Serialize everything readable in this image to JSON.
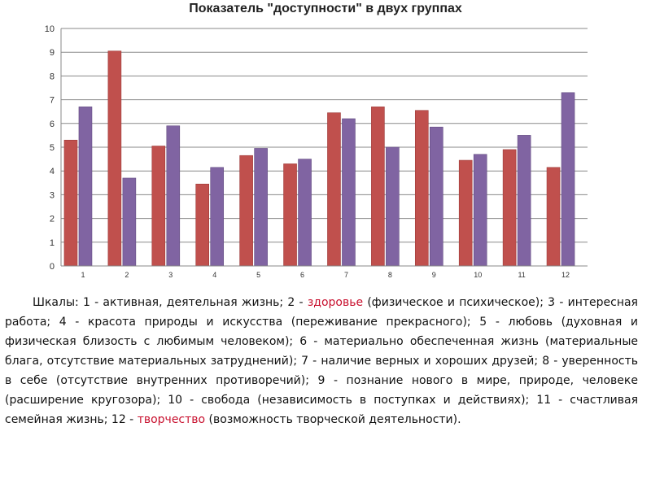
{
  "chart_data": {
    "type": "bar",
    "title": "Показатель \"доступности\" в двух группах",
    "categories": [
      "1",
      "2",
      "3",
      "4",
      "5",
      "6",
      "7",
      "8",
      "9",
      "10",
      "11",
      "12"
    ],
    "series": [
      {
        "values": [
          5.3,
          9.05,
          5.05,
          3.45,
          4.65,
          4.3,
          6.45,
          6.7,
          6.55,
          4.45,
          4.9,
          4.15
        ]
      },
      {
        "values": [
          6.7,
          3.7,
          5.9,
          4.15,
          4.95,
          4.5,
          6.2,
          5.0,
          5.85,
          4.7,
          5.5,
          7.3
        ]
      }
    ],
    "yticks": [
      "0",
      "1",
      "2",
      "3",
      "4",
      "5",
      "6",
      "7",
      "8",
      "9",
      "10"
    ],
    "ylim": [
      0,
      10
    ],
    "grid": true,
    "colors": [
      "#c0504d",
      "#8064a2"
    ]
  },
  "legend": {
    "p1": "Шкалы: 1 - активная, деятельная жизнь; 2 - ",
    "h1": "здоровье",
    "p2": " (физическое и психическое); 3 - интересная работа; 4 - красота природы и искусства (переживание прекрасного); 5 - любовь (духовная и физическая близость с любимым человеком); 6 - материально обеспеченная жизнь (материальные блага, отсутствие материальных затруднений); 7 - наличие верных и хороших друзей; 8 - уверенность в себе (отсутствие внутренних противоречий); 9 - познание нового в мире, природе, человеке (расширение кругозора); 10 - свобода (независимость в поступках и действиях); 11 - счастливая семейная жизнь; 12 - ",
    "h2": "творчество",
    "p3": " (возможность творческой деятельности)."
  }
}
